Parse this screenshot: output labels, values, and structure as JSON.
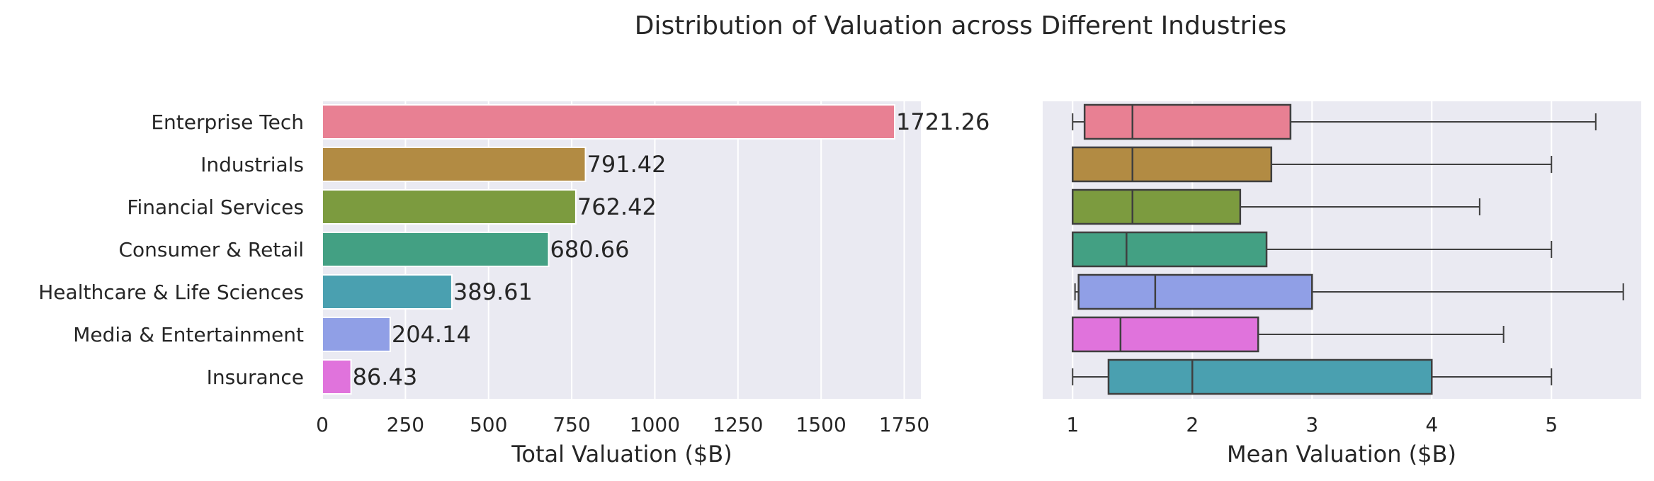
{
  "title": "Distribution of Valuation across Different Industries",
  "chart_data": [
    {
      "type": "bar",
      "orientation": "horizontal",
      "categories": [
        "Enterprise Tech",
        "Industrials",
        "Financial Services",
        "Consumer & Retail",
        "Healthcare & Life Sciences",
        "Media & Entertainment",
        "Insurance"
      ],
      "values": [
        1721.26,
        791.42,
        762.42,
        680.66,
        389.61,
        204.14,
        86.43
      ],
      "value_labels": [
        "1721.26",
        "791.42",
        "762.42",
        "680.66",
        "389.61",
        "204.14",
        "86.43"
      ],
      "colors": [
        "#e88093",
        "#b28b43",
        "#7c9b3f",
        "#43a083",
        "#4aa0b0",
        "#909fe6",
        "#e073dc"
      ],
      "xlabel": "Total Valuation ($B)",
      "xlim": [
        0,
        1800
      ],
      "xticks": [
        0,
        250,
        500,
        750,
        1000,
        1250,
        1500,
        1750
      ],
      "xtick_labels": [
        "0",
        "250",
        "500",
        "750",
        "1000",
        "1250",
        "1500",
        "1750"
      ],
      "grid": true
    },
    {
      "type": "box",
      "orientation": "horizontal",
      "categories": [
        "Enterprise Tech",
        "Industrials",
        "Financial Services",
        "Consumer & Retail",
        "Healthcare & Life Sciences",
        "Media & Entertainment",
        "Insurance"
      ],
      "boxes": [
        {
          "whisker_low": 1.0,
          "q1": 1.1,
          "median": 1.5,
          "q3": 2.82,
          "whisker_high": 5.37
        },
        {
          "whisker_low": 1.0,
          "q1": 1.0,
          "median": 1.5,
          "q3": 2.66,
          "whisker_high": 5.0
        },
        {
          "whisker_low": 1.0,
          "q1": 1.0,
          "median": 1.5,
          "q3": 2.4,
          "whisker_high": 4.4
        },
        {
          "whisker_low": 1.0,
          "q1": 1.0,
          "median": 1.45,
          "q3": 2.62,
          "whisker_high": 5.0
        },
        {
          "whisker_low": 1.02,
          "q1": 1.05,
          "median": 1.69,
          "q3": 3.0,
          "whisker_high": 5.6
        },
        {
          "whisker_low": 1.0,
          "q1": 1.0,
          "median": 1.4,
          "q3": 2.55,
          "whisker_high": 4.6
        },
        {
          "whisker_low": 1.0,
          "q1": 1.3,
          "median": 2.0,
          "q3": 4.0,
          "whisker_high": 5.0
        }
      ],
      "colors": [
        "#e88093",
        "#b28b43",
        "#7c9b3f",
        "#43a083",
        "#909fe6",
        "#e073dc",
        "#4aa0b0"
      ],
      "xlabel": "Mean Valuation ($B)",
      "xlim": [
        0.75,
        5.75
      ],
      "xticks": [
        1,
        2,
        3,
        4,
        5
      ],
      "xtick_labels": [
        "1",
        "2",
        "3",
        "4",
        "5"
      ],
      "grid": true
    }
  ]
}
